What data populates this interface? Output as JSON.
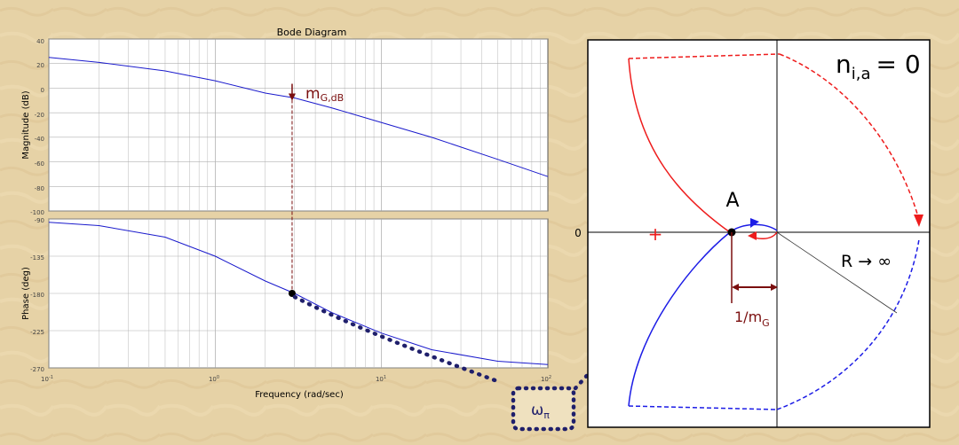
{
  "bode": {
    "title": "Bode Diagram",
    "magnitude_ylabel": "Magnitude (dB)",
    "phase_ylabel": "Phase (deg)",
    "xlabel": "Frequency  (rad/sec)",
    "magnitude_ticks": [
      "40",
      "20",
      "0",
      "-20",
      "-40",
      "-60",
      "-80",
      "-100"
    ],
    "phase_ticks": [
      "-90",
      "-135",
      "-180",
      "-225",
      "-270"
    ],
    "freq_tick_bases": [
      "10",
      "10",
      "10",
      "10"
    ],
    "freq_tick_exps": [
      "-1",
      "0",
      "1",
      "2"
    ],
    "gain_margin_label": "m",
    "gain_margin_sub": "G,dB"
  },
  "nyquist": {
    "count_label": "n",
    "count_sub": "i,a",
    "count_value": "= 0",
    "point_label": "A",
    "origin_label": "0",
    "pole_marker": "+",
    "radius_label": "R → ∞",
    "margin_label": "1/m",
    "margin_sub": "G"
  },
  "link": {
    "label": "ω",
    "label_sub": "π"
  },
  "colors": {
    "background": "#e6d2a6",
    "bode_curve": "#1a1acc",
    "annotation": "#7a0e0e",
    "nyquist_red": "#ee1c1c",
    "nyquist_blue": "#1c1ce6",
    "dotted_link": "#1f1f6b"
  },
  "chart_data": [
    {
      "type": "line",
      "title": "Bode Diagram",
      "panel": "magnitude",
      "xlabel": "Frequency  (rad/sec)",
      "ylabel": "Magnitude (dB)",
      "xscale": "log",
      "xlim": [
        0.1,
        100
      ],
      "ylim": [
        -100,
        40
      ],
      "grid": true,
      "x": [
        0.1,
        0.2,
        0.5,
        1,
        2,
        3,
        5,
        10,
        20,
        50,
        100
      ],
      "y": [
        25,
        21,
        14,
        6,
        -4,
        -8,
        -16,
        -28,
        -40,
        -58,
        -72
      ],
      "markers": [
        {
          "x": 2.9,
          "y": -8,
          "label": "m_G,dB"
        }
      ]
    },
    {
      "type": "line",
      "panel": "phase",
      "xlabel": "Frequency  (rad/sec)",
      "ylabel": "Phase (deg)",
      "xscale": "log",
      "xlim": [
        0.1,
        100
      ],
      "ylim": [
        -270,
        -90
      ],
      "grid": true,
      "x": [
        0.1,
        0.2,
        0.5,
        1,
        2,
        3,
        5,
        10,
        20,
        50,
        100
      ],
      "y": [
        -94,
        -98,
        -112,
        -135,
        -165,
        -180,
        -203,
        -228,
        -248,
        -262,
        -266
      ],
      "markers": [
        {
          "x": 2.9,
          "y": -180,
          "label": "ω_π"
        }
      ]
    }
  ]
}
